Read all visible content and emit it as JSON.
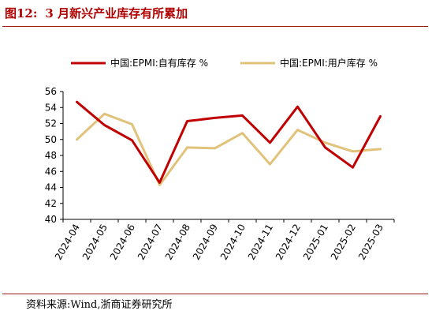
{
  "figure": {
    "label": "图12:",
    "title": "3 月新兴产业库存有所累加",
    "source": "资料来源:Wind,浙商证券研究所"
  },
  "chart_data": {
    "type": "line",
    "x": [
      "2024-04",
      "2024-05",
      "2024-06",
      "2024-07",
      "2024-08",
      "2024-09",
      "2024-10",
      "2024-11",
      "2024-12",
      "2025-01",
      "2025-02",
      "2025-03"
    ],
    "series": [
      {
        "name": "中国:EPMI:自有库存 %",
        "color": "#c00000",
        "values": [
          54.7,
          51.8,
          49.9,
          44.6,
          52.3,
          52.7,
          53.0,
          49.6,
          54.1,
          49.0,
          46.5,
          52.9
        ]
      },
      {
        "name": "中国:EPMI:用户库存 %",
        "color": "#e1c27a",
        "values": [
          50.0,
          53.2,
          51.9,
          44.3,
          49.0,
          48.9,
          50.8,
          46.9,
          51.2,
          49.6,
          48.5,
          48.8
        ]
      }
    ],
    "ylim": [
      40,
      56
    ],
    "yticks": [
      40,
      42,
      44,
      46,
      48,
      50,
      52,
      54,
      56
    ],
    "legend_position": "top"
  }
}
